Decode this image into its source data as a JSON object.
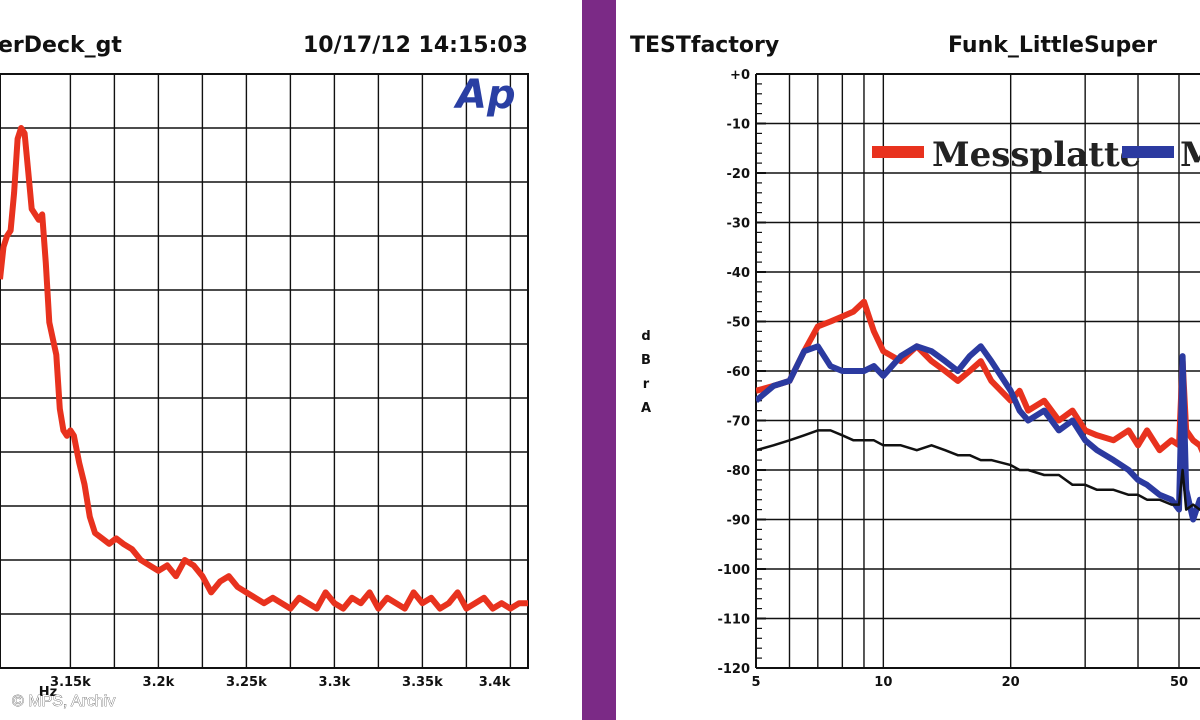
{
  "copyright": "© MPS, Archiv",
  "chart_data": [
    {
      "type": "line",
      "title_left": "erDeck_gt",
      "title_right": "10/17/12 14:15:03",
      "logo": "Ap",
      "xlabel": "Hz",
      "x_tick_labels": [
        "3.15k",
        "3.2k",
        "3.25k",
        "3.3k",
        "3.35k",
        "3.4k"
      ],
      "xlim": [
        3110,
        3410
      ],
      "ylim": [
        -10,
        1
      ],
      "colors": {
        "line": "#e8321e"
      },
      "series": [
        {
          "x": [
            3110,
            3112,
            3114,
            3116,
            3118,
            3120,
            3122,
            3124,
            3126,
            3128,
            3130,
            3132,
            3134,
            3136,
            3138,
            3140,
            3142,
            3144,
            3146,
            3148,
            3150,
            3152,
            3155,
            3158,
            3161,
            3164,
            3168,
            3172,
            3176,
            3180,
            3185,
            3190,
            3195,
            3200,
            3205,
            3210,
            3215,
            3220,
            3225,
            3230,
            3235,
            3240,
            3245,
            3250,
            3255,
            3260,
            3265,
            3270,
            3275,
            3280,
            3285,
            3290,
            3295,
            3300,
            3305,
            3310,
            3315,
            3320,
            3325,
            3330,
            3335,
            3340,
            3345,
            3350,
            3355,
            3360,
            3365,
            3370,
            3375,
            3380,
            3385,
            3390,
            3395,
            3400,
            3405,
            3410
          ],
          "values": [
            -2.8,
            -2.2,
            -2.0,
            -1.9,
            -1.2,
            -0.2,
            0.0,
            -0.1,
            -0.8,
            -1.5,
            -1.6,
            -1.7,
            -1.6,
            -2.5,
            -3.6,
            -3.9,
            -4.2,
            -5.2,
            -5.6,
            -5.7,
            -5.6,
            -5.7,
            -6.2,
            -6.6,
            -7.2,
            -7.5,
            -7.6,
            -7.7,
            -7.6,
            -7.7,
            -7.8,
            -8.0,
            -8.1,
            -8.2,
            -8.1,
            -8.3,
            -8.0,
            -8.1,
            -8.3,
            -8.6,
            -8.4,
            -8.3,
            -8.5,
            -8.6,
            -8.7,
            -8.8,
            -8.7,
            -8.8,
            -8.9,
            -8.7,
            -8.8,
            -8.9,
            -8.6,
            -8.8,
            -8.9,
            -8.7,
            -8.8,
            -8.6,
            -8.9,
            -8.7,
            -8.8,
            -8.9,
            -8.6,
            -8.8,
            -8.7,
            -8.9,
            -8.8,
            -8.6,
            -8.9,
            -8.8,
            -8.7,
            -8.9,
            -8.8,
            -8.9,
            -8.8,
            -8.8
          ]
        }
      ]
    },
    {
      "type": "line",
      "title_left": "TESTfactory",
      "title_right": "Funk_LittleSuper",
      "ylabel": "d B r A",
      "x_scale": "log",
      "x_tick_labels": [
        "5",
        "10",
        "20",
        "50"
      ],
      "y_tick_labels": [
        "+0",
        "-10",
        "-20",
        "-30",
        "-40",
        "-50",
        "-60",
        "-70",
        "-80",
        "-90",
        "-100",
        "-110",
        "-120"
      ],
      "xlim": [
        5,
        60
      ],
      "ylim": [
        -120,
        0
      ],
      "colors": {
        "red": "#e8321e",
        "blue": "#2b3aa0",
        "black": "#111111"
      },
      "legend": [
        "Messplatte",
        "M"
      ],
      "series": [
        {
          "color": "red",
          "x": [
            5,
            5.5,
            6,
            6.5,
            7,
            7.5,
            8,
            8.5,
            9,
            9.5,
            10,
            11,
            12,
            13,
            14,
            15,
            16,
            17,
            18,
            20,
            21,
            22,
            24,
            26,
            28,
            30,
            32,
            35,
            38,
            40,
            42,
            45,
            48,
            50,
            51,
            52,
            54,
            56,
            58,
            60
          ],
          "values": [
            -64,
            -63,
            -62,
            -56,
            -51,
            -50,
            -49,
            -48,
            -46,
            -52,
            -56,
            -58,
            -55,
            -58,
            -60,
            -62,
            -60,
            -58,
            -62,
            -66,
            -64,
            -68,
            -66,
            -70,
            -68,
            -72,
            -73,
            -74,
            -72,
            -75,
            -72,
            -76,
            -74,
            -75,
            -58,
            -72,
            -74,
            -75,
            -78,
            -76
          ]
        },
        {
          "color": "blue",
          "x": [
            5,
            5.5,
            6,
            6.5,
            7,
            7.5,
            8,
            8.5,
            9,
            9.5,
            10,
            11,
            12,
            13,
            14,
            15,
            16,
            17,
            18,
            20,
            21,
            22,
            24,
            26,
            28,
            30,
            32,
            35,
            38,
            40,
            42,
            45,
            48,
            50,
            51,
            52,
            54,
            56,
            58,
            60
          ],
          "values": [
            -66,
            -63,
            -62,
            -56,
            -55,
            -59,
            -60,
            -60,
            -60,
            -59,
            -61,
            -57,
            -55,
            -56,
            -58,
            -60,
            -57,
            -55,
            -58,
            -64,
            -68,
            -70,
            -68,
            -72,
            -70,
            -74,
            -76,
            -78,
            -80,
            -82,
            -83,
            -85,
            -86,
            -88,
            -57,
            -84,
            -90,
            -86,
            -88,
            -85
          ]
        },
        {
          "color": "black",
          "x": [
            5,
            5.5,
            6,
            6.5,
            7,
            7.5,
            8,
            8.5,
            9,
            9.5,
            10,
            11,
            12,
            13,
            14,
            15,
            16,
            17,
            18,
            20,
            21,
            22,
            24,
            26,
            28,
            30,
            32,
            35,
            38,
            40,
            42,
            45,
            48,
            50,
            51,
            52,
            54,
            56,
            58,
            60
          ],
          "values": [
            -76,
            -75,
            -74,
            -73,
            -72,
            -72,
            -73,
            -74,
            -74,
            -74,
            -75,
            -75,
            -76,
            -75,
            -76,
            -77,
            -77,
            -78,
            -78,
            -79,
            -80,
            -80,
            -81,
            -81,
            -83,
            -83,
            -84,
            -84,
            -85,
            -85,
            -86,
            -86,
            -87,
            -87,
            -80,
            -88,
            -87,
            -88,
            -87,
            -88
          ]
        }
      ]
    }
  ]
}
